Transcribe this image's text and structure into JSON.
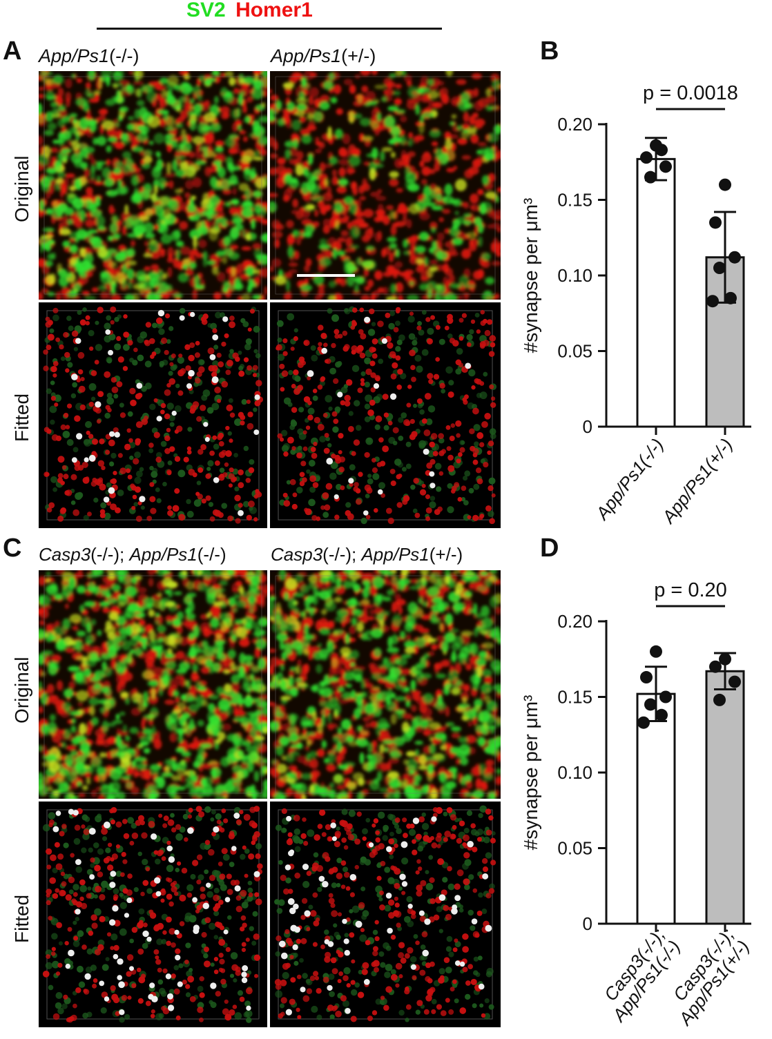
{
  "header": {
    "sv2": "SV2",
    "homer1": "Homer1",
    "sv2_color": "#22dd22",
    "homer1_color": "#ee1111"
  },
  "panel_a": {
    "letter": "A",
    "col1": {
      "it": "App/Ps1",
      "plain": "(-/-)"
    },
    "col2": {
      "it": "App/Ps1",
      "plain": "(+/-)"
    },
    "row1": "Original",
    "row2": "Fitted"
  },
  "panel_c": {
    "letter": "C",
    "col1": {
      "it1": "Casp3",
      "p1": "(-/-); ",
      "it2": "App/Ps1",
      "p2": "(-/-)"
    },
    "col2": {
      "it1": "Casp3",
      "p1": "(-/-); ",
      "it2": "App/Ps1",
      "p2": "(+/-)"
    },
    "row1": "Original",
    "row2": "Fitted"
  },
  "panel_b": {
    "letter": "B"
  },
  "panel_d": {
    "letter": "D"
  },
  "chart_data": [
    {
      "type": "bar",
      "panel": "B",
      "ylabel": "#synapse per μm³",
      "ylim": [
        0,
        0.2
      ],
      "yticks": [
        "0",
        "0.05",
        "0.10",
        "0.15",
        "0.20"
      ],
      "categories": [
        [
          "App/Ps1(-/-)"
        ],
        [
          "App/Ps1(+/-)"
        ]
      ],
      "values": [
        0.177,
        0.112
      ],
      "errors": [
        0.014,
        0.03
      ],
      "bar_colors": [
        "#ffffff",
        "#bdbdbd"
      ],
      "points": [
        [
          0.186,
          0.178,
          0.172,
          0.165,
          0.183
        ],
        [
          0.16,
          0.135,
          0.112,
          0.105,
          0.085,
          0.083
        ]
      ],
      "annotation": "p = 0.0018"
    },
    {
      "type": "bar",
      "panel": "D",
      "ylabel": "#synapse per μm³",
      "ylim": [
        0,
        0.2
      ],
      "yticks": [
        "0",
        "0.05",
        "0.10",
        "0.15",
        "0.20"
      ],
      "categories": [
        [
          "Casp3(-/-);",
          "App/Ps1(-/-)"
        ],
        [
          "Casp3(-/-);",
          "App/Ps1(+/-)"
        ]
      ],
      "values": [
        0.152,
        0.167
      ],
      "errors": [
        0.018,
        0.012
      ],
      "bar_colors": [
        "#ffffff",
        "#bdbdbd"
      ],
      "points": [
        [
          0.18,
          0.163,
          0.15,
          0.145,
          0.138,
          0.133
        ],
        [
          0.175,
          0.17,
          0.16,
          0.148
        ]
      ],
      "annotation": "p = 0.20"
    }
  ]
}
